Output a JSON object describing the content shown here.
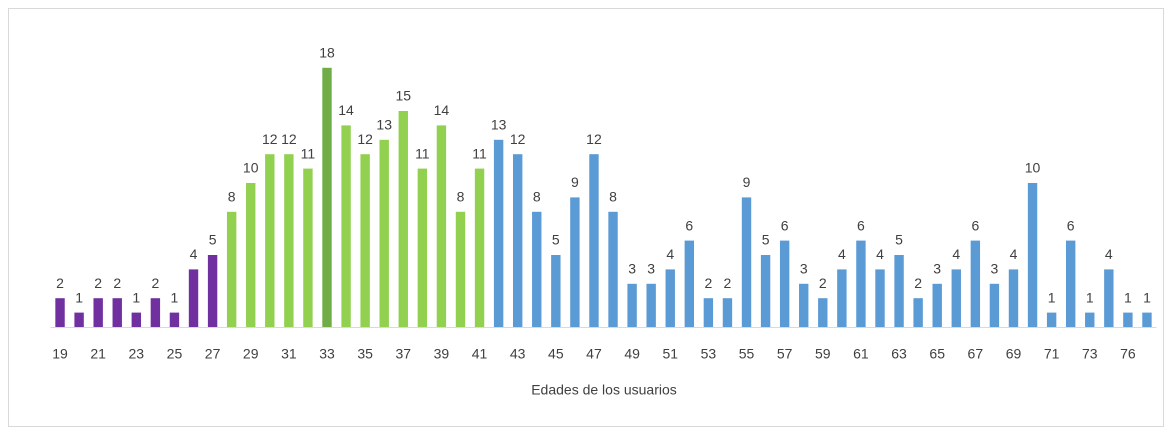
{
  "chart_data": {
    "type": "bar",
    "x_label": "Edades de los usuarios",
    "categories": [
      "19",
      null,
      "21",
      null,
      "23",
      null,
      "25",
      null,
      "27",
      null,
      "29",
      null,
      "31",
      null,
      "33",
      null,
      "35",
      null,
      "37",
      null,
      "39",
      null,
      "41",
      null,
      "43",
      null,
      "45",
      null,
      "47",
      null,
      "49",
      null,
      "51",
      null,
      "53",
      null,
      "55",
      null,
      "57",
      null,
      "59",
      null,
      "61",
      null,
      "63",
      null,
      "65",
      null,
      "67",
      null,
      "69",
      null,
      "71",
      null,
      "73",
      null,
      "76",
      null
    ],
    "values": [
      2,
      1,
      2,
      2,
      1,
      2,
      1,
      4,
      5,
      8,
      10,
      12,
      12,
      11,
      18,
      14,
      12,
      13,
      15,
      11,
      14,
      8,
      11,
      13,
      12,
      8,
      5,
      9,
      12,
      8,
      3,
      3,
      4,
      6,
      2,
      2,
      9,
      5,
      6,
      3,
      2,
      4,
      6,
      4,
      5,
      2,
      3,
      4,
      6,
      3,
      4,
      10,
      1,
      6,
      1,
      4,
      1,
      1
    ],
    "colors": [
      "#7030a0",
      "#7030a0",
      "#7030a0",
      "#7030a0",
      "#7030a0",
      "#7030a0",
      "#7030a0",
      "#7030a0",
      "#7030a0",
      "#92d050",
      "#92d050",
      "#92d050",
      "#92d050",
      "#92d050",
      "#70ad47",
      "#92d050",
      "#92d050",
      "#92d050",
      "#92d050",
      "#92d050",
      "#92d050",
      "#92d050",
      "#92d050",
      "#5b9bd5",
      "#5b9bd5",
      "#5b9bd5",
      "#5b9bd5",
      "#5b9bd5",
      "#5b9bd5",
      "#5b9bd5",
      "#5b9bd5",
      "#5b9bd5",
      "#5b9bd5",
      "#5b9bd5",
      "#5b9bd5",
      "#5b9bd5",
      "#5b9bd5",
      "#5b9bd5",
      "#5b9bd5",
      "#5b9bd5",
      "#5b9bd5",
      "#5b9bd5",
      "#5b9bd5",
      "#5b9bd5",
      "#5b9bd5",
      "#5b9bd5",
      "#5b9bd5",
      "#5b9bd5",
      "#5b9bd5",
      "#5b9bd5",
      "#5b9bd5",
      "#5b9bd5",
      "#5b9bd5",
      "#5b9bd5",
      "#5b9bd5",
      "#5b9bd5",
      "#5b9bd5",
      "#5b9bd5"
    ],
    "ylim": [
      0,
      20
    ]
  }
}
